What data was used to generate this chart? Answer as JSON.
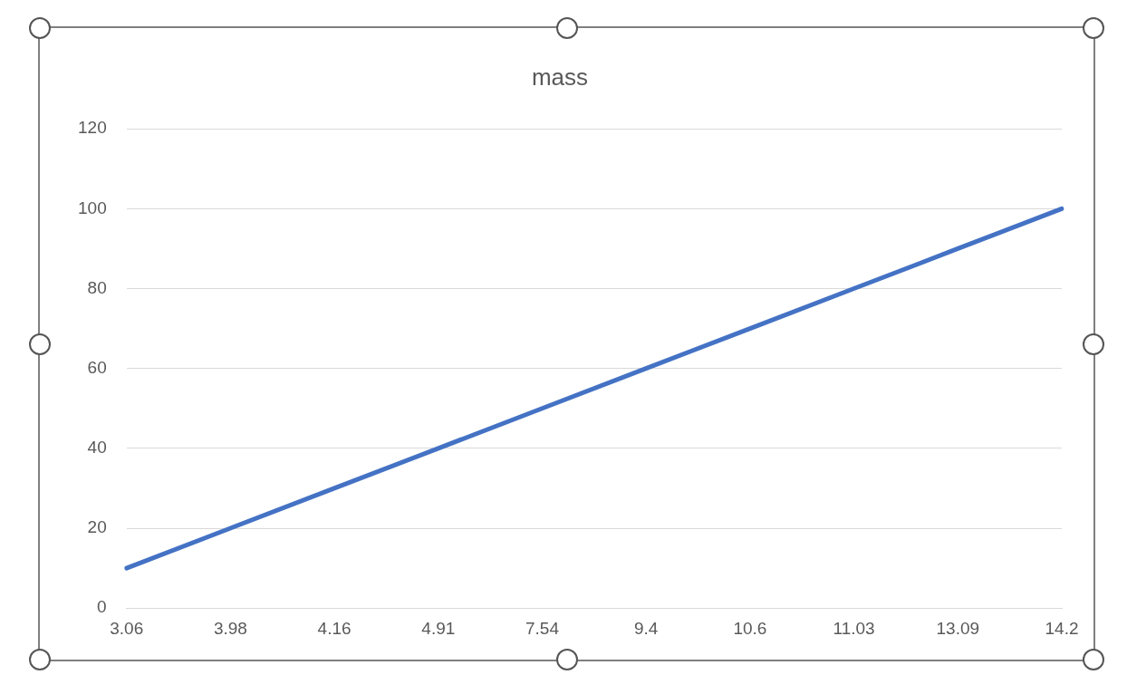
{
  "chart_data": {
    "type": "line",
    "title": "mass",
    "categories": [
      "3.06",
      "3.98",
      "4.16",
      "4.91",
      "7.54",
      "9.4",
      "10.6",
      "11.03",
      "13.09",
      "14.2"
    ],
    "series": [
      {
        "color": "#4472c4",
        "values": [
          10,
          20,
          30,
          40,
          50,
          60,
          70,
          80,
          90,
          100
        ]
      }
    ],
    "ylim": [
      0,
      120
    ],
    "yticks": [
      0,
      20,
      40,
      60,
      80,
      100,
      120
    ],
    "grid": "y",
    "legend": false,
    "marker": "none",
    "line_style": "solid"
  }
}
